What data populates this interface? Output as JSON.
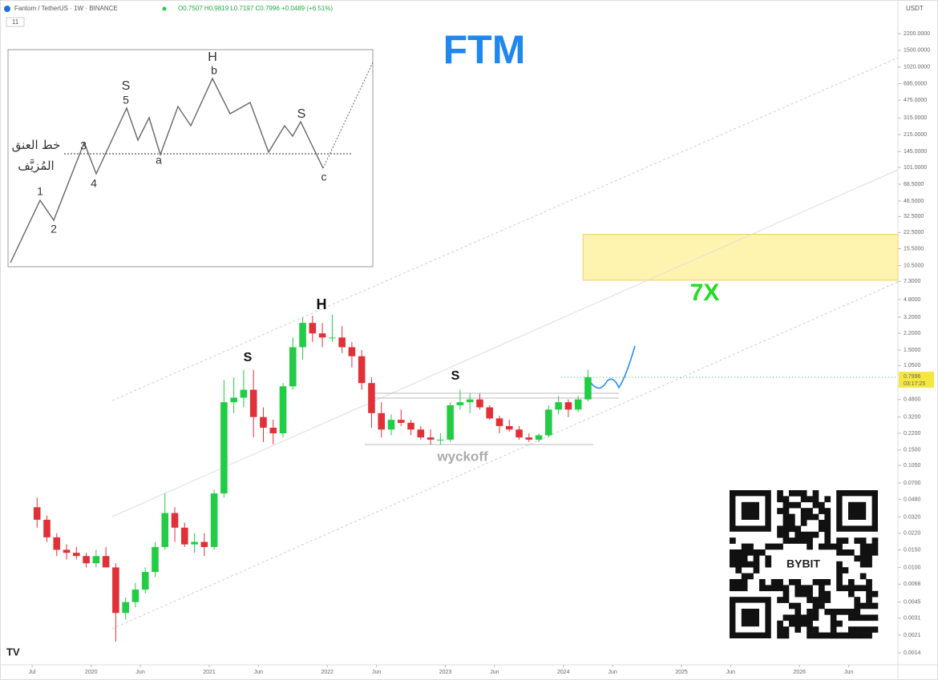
{
  "header": {
    "symbol": "Fantom / TetherUS · 1W · BINANCE",
    "ohlc": "O0.7507 H0.9819 L0.7197 C0.7996 +0.0489 (+6.51%)",
    "interval_badge": "11",
    "currency": "USDT"
  },
  "inset": {
    "labels": [
      "1",
      "2",
      "3",
      "4",
      "5",
      "S",
      "a",
      "H",
      "b",
      "S",
      "c"
    ],
    "neckline_line1": "خط العنق",
    "neckline_line2": "المُزيَّف"
  },
  "qr": {
    "brand": "BYBIT"
  },
  "chart_data": {
    "type": "candlestick",
    "title": "FTM",
    "log_scale": true,
    "grid": false,
    "up_color": "#22cc44",
    "down_color": "#e03038",
    "x": [
      "2019-07",
      "2019-08",
      "2019-09",
      "2019-10",
      "2019-11",
      "2019-12",
      "2020-01",
      "2020-02",
      "2020-03",
      "2020-04",
      "2020-05",
      "2020-06",
      "2020-07",
      "2020-08",
      "2020-09",
      "2020-10",
      "2020-11",
      "2020-12",
      "2021-01",
      "2021-02",
      "2021-03",
      "2021-04",
      "2021-05",
      "2021-06",
      "2021-07",
      "2021-08",
      "2021-09",
      "2021-10",
      "2021-11",
      "2021-12",
      "2022-01",
      "2022-02",
      "2022-03",
      "2022-04",
      "2022-05",
      "2022-06",
      "2022-07",
      "2022-08",
      "2022-09",
      "2022-10",
      "2022-11",
      "2022-12",
      "2023-01",
      "2023-02",
      "2023-03",
      "2023-04",
      "2023-05",
      "2023-06",
      "2023-07",
      "2023-08",
      "2023-09",
      "2023-10",
      "2023-11",
      "2023-12",
      "2024-01",
      "2024-02",
      "2024-03"
    ],
    "open": [
      0.04,
      0.03,
      0.02,
      0.015,
      0.014,
      0.013,
      0.011,
      0.013,
      0.01,
      0.0035,
      0.0045,
      0.006,
      0.009,
      0.016,
      0.035,
      0.025,
      0.017,
      0.018,
      0.016,
      0.055,
      0.45,
      0.5,
      0.6,
      0.32,
      0.25,
      0.22,
      0.65,
      1.6,
      2.8,
      2.2,
      2.0,
      2.0,
      1.6,
      1.3,
      0.7,
      0.35,
      0.24,
      0.3,
      0.28,
      0.24,
      0.2,
      0.19,
      0.19,
      0.42,
      0.45,
      0.48,
      0.4,
      0.31,
      0.26,
      0.24,
      0.2,
      0.19,
      0.21,
      0.38,
      0.45,
      0.38,
      0.48
    ],
    "high": [
      0.05,
      0.033,
      0.022,
      0.017,
      0.016,
      0.014,
      0.015,
      0.016,
      0.011,
      0.005,
      0.007,
      0.01,
      0.018,
      0.055,
      0.04,
      0.028,
      0.022,
      0.022,
      0.06,
      0.75,
      0.8,
      0.95,
      0.95,
      0.4,
      0.3,
      0.7,
      2.0,
      3.2,
      3.3,
      2.8,
      3.4,
      2.6,
      1.8,
      1.5,
      0.8,
      0.45,
      0.34,
      0.38,
      0.3,
      0.26,
      0.24,
      0.22,
      0.45,
      0.6,
      0.55,
      0.55,
      0.42,
      0.33,
      0.3,
      0.26,
      0.22,
      0.22,
      0.42,
      0.52,
      0.48,
      0.52,
      0.95
    ],
    "low": [
      0.025,
      0.018,
      0.013,
      0.012,
      0.012,
      0.01,
      0.01,
      0.01,
      0.0018,
      0.003,
      0.004,
      0.0055,
      0.008,
      0.015,
      0.018,
      0.016,
      0.014,
      0.013,
      0.015,
      0.05,
      0.35,
      0.4,
      0.2,
      0.18,
      0.17,
      0.2,
      0.6,
      1.2,
      1.8,
      1.6,
      1.8,
      1.4,
      1.0,
      0.6,
      0.25,
      0.2,
      0.21,
      0.26,
      0.21,
      0.19,
      0.17,
      0.17,
      0.18,
      0.38,
      0.35,
      0.38,
      0.3,
      0.22,
      0.23,
      0.19,
      0.18,
      0.18,
      0.2,
      0.34,
      0.32,
      0.36,
      0.46
    ],
    "close": [
      0.03,
      0.02,
      0.015,
      0.014,
      0.013,
      0.011,
      0.013,
      0.01,
      0.0035,
      0.0045,
      0.006,
      0.009,
      0.016,
      0.035,
      0.025,
      0.017,
      0.018,
      0.016,
      0.055,
      0.45,
      0.5,
      0.6,
      0.32,
      0.25,
      0.22,
      0.65,
      1.6,
      2.8,
      2.2,
      2.0,
      2.0,
      1.6,
      1.3,
      0.7,
      0.35,
      0.24,
      0.3,
      0.28,
      0.24,
      0.2,
      0.19,
      0.19,
      0.42,
      0.45,
      0.48,
      0.4,
      0.31,
      0.26,
      0.24,
      0.2,
      0.19,
      0.21,
      0.38,
      0.45,
      0.38,
      0.48,
      0.7996
    ],
    "xlim": [
      "2019-03",
      "2026-11"
    ],
    "ylim": [
      0.00106,
      4780
    ],
    "xticks": [
      {
        "value": "2019-07",
        "label": "Jul"
      },
      {
        "value": "2020-01",
        "label": "2020"
      },
      {
        "value": "2020-06",
        "label": "Jun"
      },
      {
        "value": "2021-01",
        "label": "2021"
      },
      {
        "value": "2021-06",
        "label": "Jun"
      },
      {
        "value": "2022-01",
        "label": "2022"
      },
      {
        "value": "2022-06",
        "label": "Jun"
      },
      {
        "value": "2023-01",
        "label": "2023"
      },
      {
        "value": "2023-06",
        "label": "Jun"
      },
      {
        "value": "2024-01",
        "label": "2024"
      },
      {
        "value": "2024-06",
        "label": "Jun"
      },
      {
        "value": "2025-01",
        "label": "2025"
      },
      {
        "value": "2025-06",
        "label": "Jun"
      },
      {
        "value": "2026-01",
        "label": "2026"
      },
      {
        "value": "2026-06",
        "label": "Jun"
      }
    ],
    "yticks": [
      {
        "value": 2200,
        "label": "2200.0000"
      },
      {
        "value": 1500,
        "label": "1500.0000"
      },
      {
        "value": 1020,
        "label": "1020.0000"
      },
      {
        "value": 695,
        "label": "695.0000"
      },
      {
        "value": 475,
        "label": "475.0000"
      },
      {
        "value": 315,
        "label": "315.0000"
      },
      {
        "value": 215,
        "label": "215.0000"
      },
      {
        "value": 145,
        "label": "145.0000"
      },
      {
        "value": 101,
        "label": "101.0000"
      },
      {
        "value": 68.5,
        "label": "68.5000"
      },
      {
        "value": 46.5,
        "label": "46.5000"
      },
      {
        "value": 32.5,
        "label": "32.5000"
      },
      {
        "value": 22.5,
        "label": "22.5000"
      },
      {
        "value": 15.5,
        "label": "15.5000"
      },
      {
        "value": 10.5,
        "label": "10.5000"
      },
      {
        "value": 7.3,
        "label": "7.3000"
      },
      {
        "value": 4.8,
        "label": "4.8000"
      },
      {
        "value": 3.2,
        "label": "3.2000"
      },
      {
        "value": 2.2,
        "label": "2.2000"
      },
      {
        "value": 1.5,
        "label": "1.5000"
      },
      {
        "value": 1.05,
        "label": "1.0500"
      },
      {
        "value": 0.48,
        "label": "0.4800"
      },
      {
        "value": 0.32,
        "label": "0.3200"
      },
      {
        "value": 0.22,
        "label": "0.2200"
      },
      {
        "value": 0.15,
        "label": "0.1500"
      },
      {
        "value": 0.105,
        "label": "0.1050"
      },
      {
        "value": 0.07,
        "label": "0.0700"
      },
      {
        "value": 0.048,
        "label": "0.0480"
      },
      {
        "value": 0.032,
        "label": "0.0320"
      },
      {
        "value": 0.022,
        "label": "0.0220"
      },
      {
        "value": 0.015,
        "label": "0.0150"
      },
      {
        "value": 0.01,
        "label": "0.0100"
      },
      {
        "value": 0.0068,
        "label": "0.0068"
      },
      {
        "value": 0.0045,
        "label": "0.0045"
      },
      {
        "value": 0.0031,
        "label": "0.0031"
      },
      {
        "value": 0.0021,
        "label": "0.0021"
      },
      {
        "value": 0.0014,
        "label": "0.0014"
      }
    ],
    "last_price": 0.7996,
    "countdown": "03:17:25",
    "target_zone": {
      "start": "2024-03",
      "low": 7.5,
      "high": 21.6,
      "color": "#fff3b0",
      "label": "7X"
    },
    "annotations": [
      "S",
      "H",
      "S",
      "wyckoff"
    ]
  }
}
